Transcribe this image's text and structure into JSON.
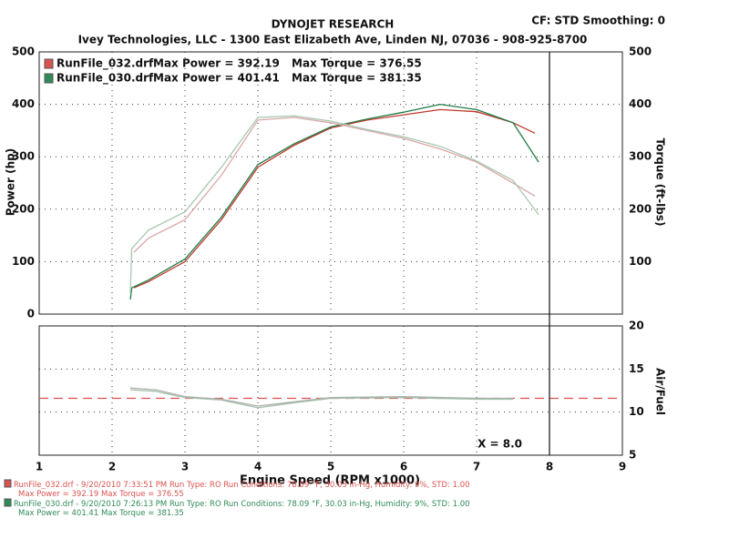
{
  "header": {
    "title": "DYNOJET RESEARCH",
    "settings": "CF: STD  Smoothing: 0",
    "subtitle": "Ivey Technologies, LLC - 1300 East Elizabeth Ave, Linden NJ, 07036 - 908-925-8700"
  },
  "legend": [
    {
      "name": "RunFile_032.drf",
      "max_power": "Max Power = 392.19",
      "max_torque": "Max Torque = 376.55",
      "color": "#d9534f"
    },
    {
      "name": "RunFile_030.drf",
      "max_power": "Max Power = 401.41",
      "max_torque": "Max Torque = 381.35",
      "color": "#2e8b57"
    }
  ],
  "chart_data": [
    {
      "type": "line",
      "y_label": "Power (hp)",
      "y2_label": "Torque (ft-lbs)",
      "xlim": [
        1,
        9
      ],
      "xticks": [
        1,
        2,
        3,
        4,
        5,
        6,
        7,
        8,
        9
      ],
      "ylim": [
        0,
        500
      ],
      "yticks": [
        0,
        100,
        200,
        300,
        400,
        500
      ],
      "y2lim": [
        0,
        500
      ],
      "y2ticks": [
        100,
        200,
        300,
        400,
        500
      ],
      "grid": true,
      "series": [
        {
          "color": "#c0392b",
          "x": [
            2.3,
            2.5,
            3,
            3.5,
            4,
            4.5,
            5,
            5.5,
            6,
            6.5,
            7,
            7.5,
            7.8
          ],
          "values": [
            50,
            62,
            100,
            180,
            280,
            322,
            355,
            370,
            380,
            390,
            386,
            365,
            345
          ]
        },
        {
          "color": "#1e7b45",
          "x": [
            2.25,
            2.27,
            2.5,
            3,
            3.5,
            4,
            4.5,
            5,
            5.5,
            6,
            6.5,
            7,
            7.5,
            7.85
          ],
          "values": [
            28,
            50,
            65,
            105,
            185,
            285,
            325,
            357,
            372,
            385,
            400,
            390,
            365,
            290
          ]
        },
        {
          "color": "#d8a8a8",
          "axis": "y2",
          "x": [
            2.3,
            2.5,
            3,
            3.5,
            4,
            4.5,
            5,
            5.5,
            6,
            6.5,
            7,
            7.5,
            7.8
          ],
          "values": [
            118,
            145,
            180,
            265,
            370,
            375,
            365,
            350,
            335,
            315,
            290,
            250,
            225
          ]
        },
        {
          "color": "#a8c8b0",
          "axis": "y2",
          "x": [
            2.25,
            2.27,
            2.5,
            3,
            3.5,
            4,
            4.5,
            5,
            5.5,
            6,
            6.5,
            7,
            7.5,
            7.85
          ],
          "values": [
            40,
            125,
            160,
            195,
            280,
            375,
            378,
            368,
            352,
            338,
            320,
            292,
            255,
            190
          ]
        }
      ]
    },
    {
      "type": "line",
      "y2_label": "Air/Fuel",
      "x_label": "Engine Speed (RPM x1000)",
      "xlim": [
        1,
        9
      ],
      "xticks": [
        1,
        2,
        3,
        4,
        5,
        6,
        7,
        8,
        9
      ],
      "ylim": [
        5,
        20
      ],
      "yticks": [
        5,
        10,
        15,
        20
      ],
      "grid": true,
      "series": [
        {
          "color": "#e05050",
          "dashed": true,
          "x": [
            1,
            9
          ],
          "values": [
            11.6,
            11.6
          ]
        },
        {
          "color": "#b0b0b0",
          "x": [
            2.25,
            2.6,
            3,
            3.5,
            4,
            4.5,
            5,
            6,
            7,
            7.5
          ],
          "values": [
            12.8,
            12.6,
            11.8,
            11.5,
            10.7,
            11.2,
            11.7,
            11.8,
            11.6,
            11.6
          ]
        },
        {
          "color": "#9fbfa8",
          "x": [
            2.25,
            2.6,
            3,
            3.5,
            4,
            4.5,
            5,
            6,
            7,
            7.5
          ],
          "values": [
            12.6,
            12.4,
            11.7,
            11.4,
            10.5,
            11.1,
            11.6,
            11.7,
            11.5,
            11.5
          ]
        }
      ],
      "cursor": {
        "x": 8,
        "label": "X = 8.0"
      }
    }
  ],
  "footer": [
    {
      "line1": "RunFile_032.drf - 9/20/2010 7:33:51 PM  Run Type: RO  Run Conditions: 78.09 °F, 30.03 in-Hg,  Humidity:  9%, STD: 1.00",
      "line2": "Max Power = 392.19  Max Torque = 376.55",
      "color": "#d9534f"
    },
    {
      "line1": "RunFile_030.drf - 9/20/2010 7:26:13 PM  Run Type: RO  Run Conditions: 78.09 °F, 30.03 in-Hg,  Humidity:  9%, STD: 1.00",
      "line2": "Max Power = 401.41  Max Torque = 381.35",
      "color": "#2e8b57"
    }
  ]
}
